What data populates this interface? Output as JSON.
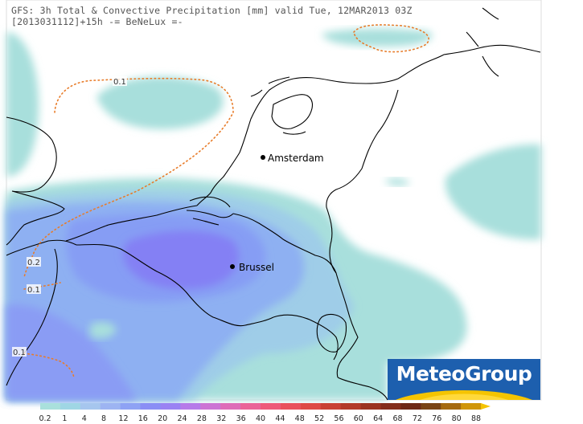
{
  "header": {
    "line1": "GFS: 3h Total & Convective Precipitation [mm] valid Tue, 12MAR2013 03Z",
    "line2": "[2013031112]+15h -= BeNeLux =-"
  },
  "cities": [
    {
      "name": "Amsterdam"
    },
    {
      "name": "Brussel"
    }
  ],
  "contour_labels": [
    "0.1",
    "0.2",
    "0.1",
    "0.1"
  ],
  "logo": {
    "text": "MeteoGroup",
    "bg_color": "#1d5fae",
    "sun_color": "#f5c400"
  },
  "legend": {
    "ticks": [
      "0.2",
      "1",
      "4",
      "8",
      "12",
      "16",
      "20",
      "24",
      "28",
      "32",
      "36",
      "40",
      "44",
      "48",
      "52",
      "56",
      "60",
      "64",
      "68",
      "72",
      "76",
      "80",
      "88"
    ],
    "colors": [
      "#a9e0dc",
      "#9fd6e4",
      "#a6c6ee",
      "#9db4f2",
      "#8ea2f4",
      "#8a8ef5",
      "#9a82f3",
      "#b67be9",
      "#cc74d4",
      "#de6cb8",
      "#ea6398",
      "#ee5a7a",
      "#e9515c",
      "#de4a45",
      "#c94134",
      "#b33a29",
      "#9b3320",
      "#842d1a",
      "#6e2816",
      "#7a4414",
      "#a56a10",
      "#d0960a",
      "#f0c800"
    ],
    "accent_color": "#f5c400"
  }
}
